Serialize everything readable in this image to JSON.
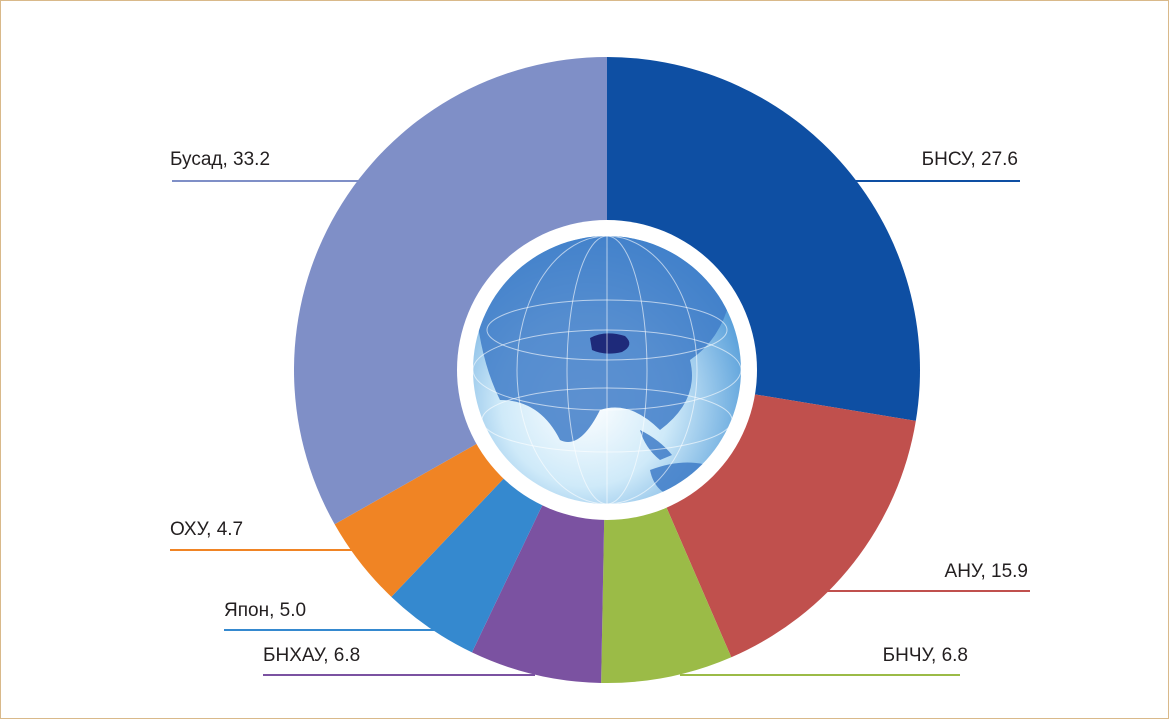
{
  "chart_data": {
    "type": "donut",
    "values": [
      27.6,
      15.9,
      6.8,
      6.8,
      5.0,
      4.7,
      33.2
    ],
    "value_labels": [
      "БНСУ, 27.6",
      "АНУ, 15.9",
      "БНЧУ, 6.8",
      "БНХАУ, 6.8",
      "Япон, 5.0",
      "ОХУ, 4.7",
      "Бусад, 33.2"
    ],
    "colors": [
      "#0e4fa3",
      "#c0504d",
      "#9bbb47",
      "#7b52a1",
      "#3589cf",
      "#f08424",
      "#7f8fc7"
    ]
  }
}
